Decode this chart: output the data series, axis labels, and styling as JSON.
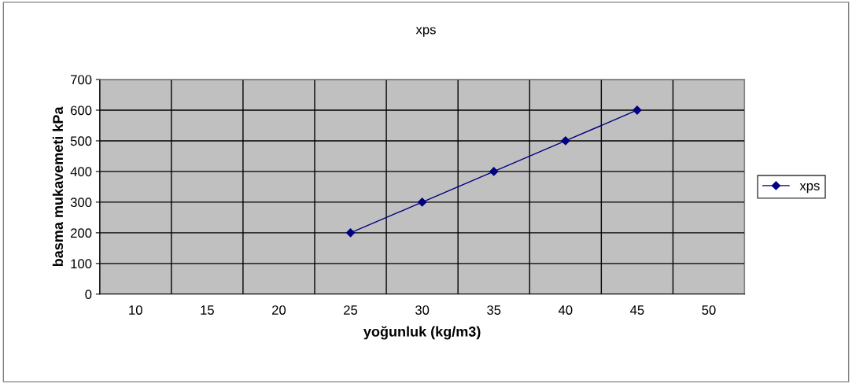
{
  "chart_data": {
    "type": "line",
    "title": "xps",
    "xlabel": "yoğunluk (kg/m3)",
    "ylabel": "basma mukavemeti kPa",
    "categories": [
      "10",
      "15",
      "20",
      "25",
      "30",
      "35",
      "40",
      "45",
      "50"
    ],
    "series": [
      {
        "name": "xps",
        "color": "#000080",
        "values": [
          null,
          null,
          null,
          200,
          300,
          400,
          500,
          600,
          null
        ]
      }
    ],
    "ylim": [
      0,
      700
    ],
    "yticks": [
      0,
      100,
      200,
      300,
      400,
      500,
      600,
      700
    ],
    "grid": true,
    "legend": "right",
    "marker": "diamond",
    "line_style": "solid"
  }
}
